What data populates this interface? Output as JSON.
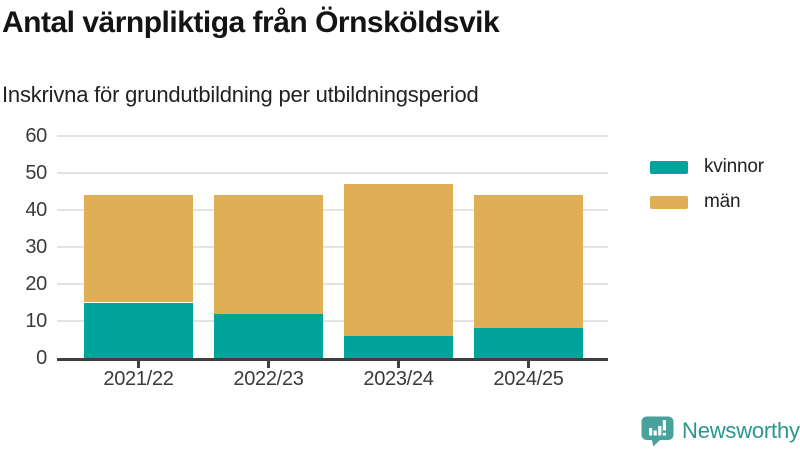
{
  "header": {
    "title": "Antal värnpliktiga från Örnsköldsvik",
    "subtitle": "Inskrivna för grundutbildning per utbildningsperiod"
  },
  "chart_data": {
    "type": "bar",
    "stacked": true,
    "title": "Antal värnpliktiga från Örnsköldsvik",
    "subtitle": "Inskrivna för grundutbildning per utbildningsperiod",
    "categories": [
      "2021/22",
      "2022/23",
      "2023/24",
      "2024/25"
    ],
    "series": [
      {
        "name": "kvinnor",
        "color": "#00a49b",
        "values": [
          15,
          12,
          6,
          8
        ]
      },
      {
        "name": "män",
        "color": "#dfae55",
        "values": [
          29,
          32,
          41,
          36
        ]
      }
    ],
    "totals": [
      44,
      44,
      47,
      44
    ],
    "xlabel": "",
    "ylabel": "",
    "ylim": [
      0,
      60
    ],
    "yticks": [
      0,
      10,
      20,
      30,
      40,
      50,
      60
    ],
    "grid": true,
    "legend_position": "right",
    "colors": {
      "axis": "#3f3f3f",
      "gridline": "#e3e3e3",
      "tick_text": "#3a3a3a"
    }
  },
  "legend": {
    "items": [
      {
        "label": "kvinnor",
        "color": "#00a49b"
      },
      {
        "label": "män",
        "color": "#dfae55"
      }
    ]
  },
  "footer": {
    "brand": "Newsworthy",
    "brand_text_color": "#2a968e",
    "brand_icon_color": "#46a29b",
    "brand_icon": "speech-bubble-bar-chart-icon"
  }
}
